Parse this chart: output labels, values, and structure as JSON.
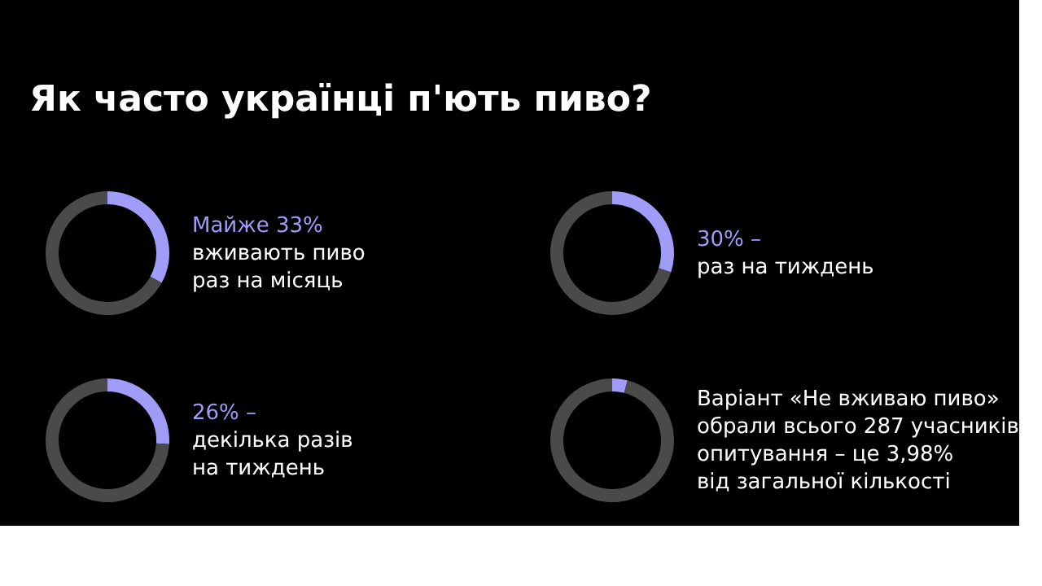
{
  "chart_data": [
    {
      "type": "donut",
      "title": "Як часто українці п'ють пиво?",
      "categories": [
        null,
        null
      ],
      "values": [
        33,
        67
      ],
      "colors": [
        "#a09cf7",
        "#4a4a4a"
      ],
      "subtitle": "Майже 33%",
      "annotations": [
        "вживають пиво",
        "раз на місяць"
      ]
    },
    {
      "type": "donut",
      "categories": [
        null,
        null
      ],
      "values": [
        30,
        70
      ],
      "colors": [
        "#a09cf7",
        "#4a4a4a"
      ],
      "subtitle": "30% –",
      "annotations": [
        "раз на тиждень"
      ]
    },
    {
      "type": "donut",
      "categories": [
        null,
        null
      ],
      "values": [
        26,
        74
      ],
      "colors": [
        "#a09cf7",
        "#4a4a4a"
      ],
      "subtitle": "26% –",
      "annotations": [
        "декілька разів",
        "на тиждень"
      ]
    },
    {
      "type": "donut",
      "categories": [
        null,
        null
      ],
      "values": [
        3.98,
        96.02
      ],
      "colors": [
        "#a09cf7",
        "#4a4a4a"
      ],
      "annotations": [
        "Варіант «Не вживаю пиво»",
        "обрали всього 287 учасників",
        "опитування – це 3,98%",
        "від загальної кількості"
      ]
    }
  ]
}
